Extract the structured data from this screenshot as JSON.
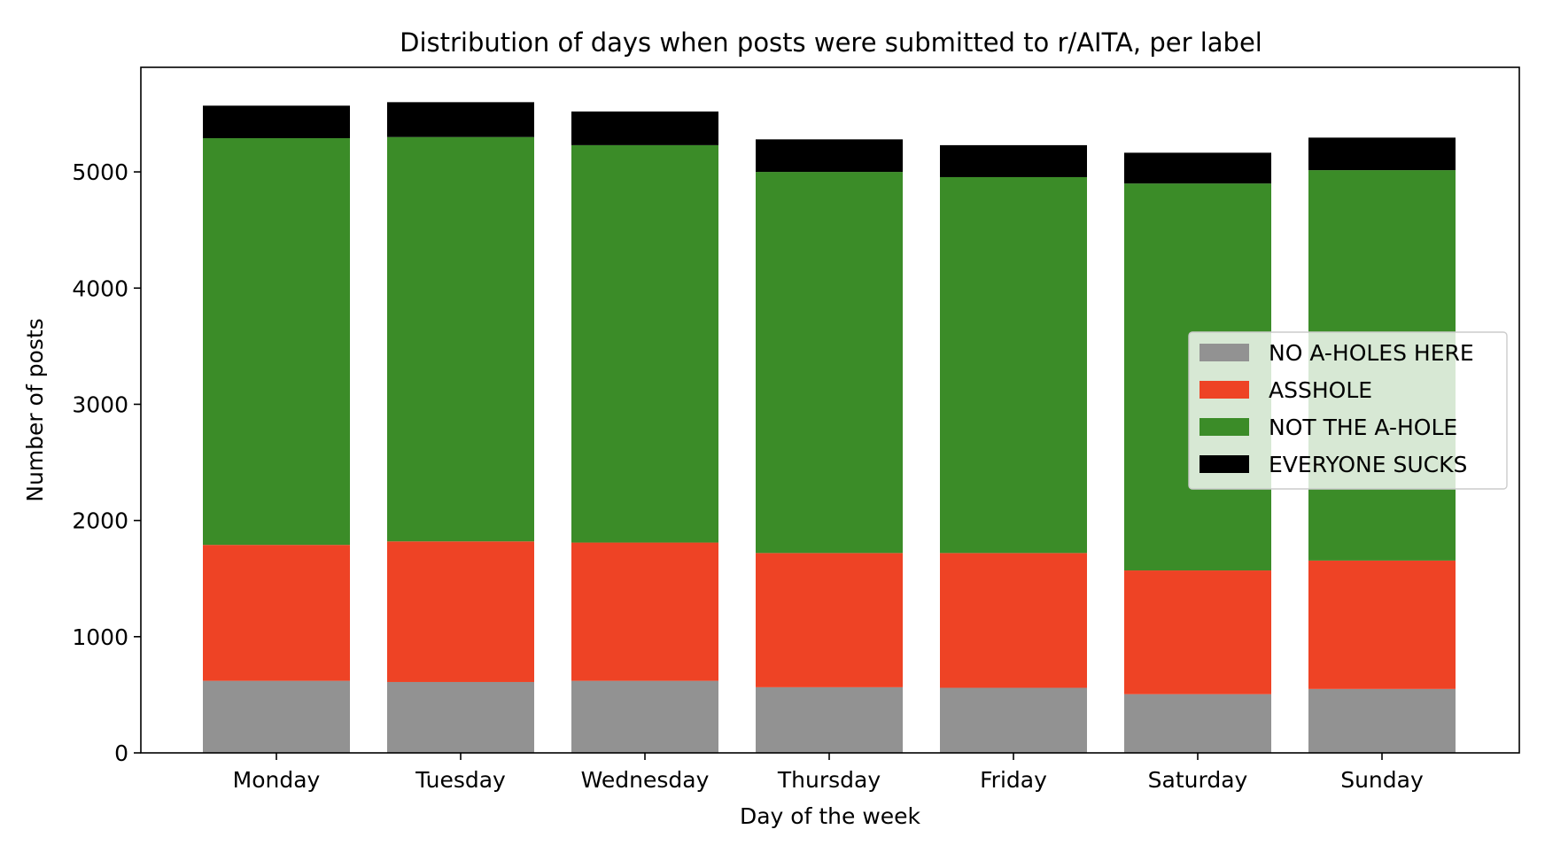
{
  "chart_data": {
    "type": "bar",
    "stacked": true,
    "title": "Distribution of days when posts were submitted to r/AITA, per label",
    "xlabel": "Day of the week",
    "ylabel": "Number of posts",
    "ylim": [
      0,
      5900
    ],
    "yticks": [
      0,
      1000,
      2000,
      3000,
      4000,
      5000
    ],
    "grid": false,
    "legend_position": "center-right",
    "categories": [
      "Monday",
      "Tuesday",
      "Wednesday",
      "Thursday",
      "Friday",
      "Saturday",
      "Sunday"
    ],
    "series": [
      {
        "name": "NO A-HOLES HERE",
        "color": "#929292",
        "values": [
          620,
          610,
          620,
          565,
          560,
          505,
          550
        ]
      },
      {
        "name": "ASSHOLE",
        "color": "#ee4325",
        "values": [
          1170,
          1210,
          1190,
          1155,
          1160,
          1065,
          1105
        ]
      },
      {
        "name": "NOT THE A-HOLE",
        "color": "#3b8c28",
        "values": [
          3500,
          3480,
          3420,
          3280,
          3235,
          3330,
          3360
        ]
      },
      {
        "name": "EVERYONE SUCKS",
        "color": "#000000",
        "values": [
          280,
          300,
          290,
          280,
          275,
          265,
          280
        ]
      }
    ]
  }
}
